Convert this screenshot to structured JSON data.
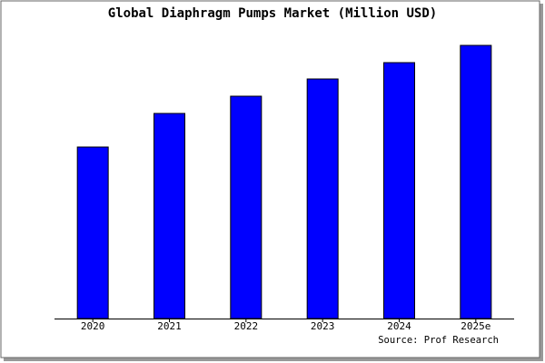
{
  "chart_data": {
    "type": "bar",
    "title": "Global Diaphragm Pumps Market (Million USD)",
    "categories": [
      "2020",
      "2021",
      "2022",
      "2023",
      "2024",
      "2025e"
    ],
    "values": [
      189,
      226,
      245,
      264,
      282,
      301
    ],
    "color": "#0000ff",
    "source": "Source: Prof Research"
  }
}
